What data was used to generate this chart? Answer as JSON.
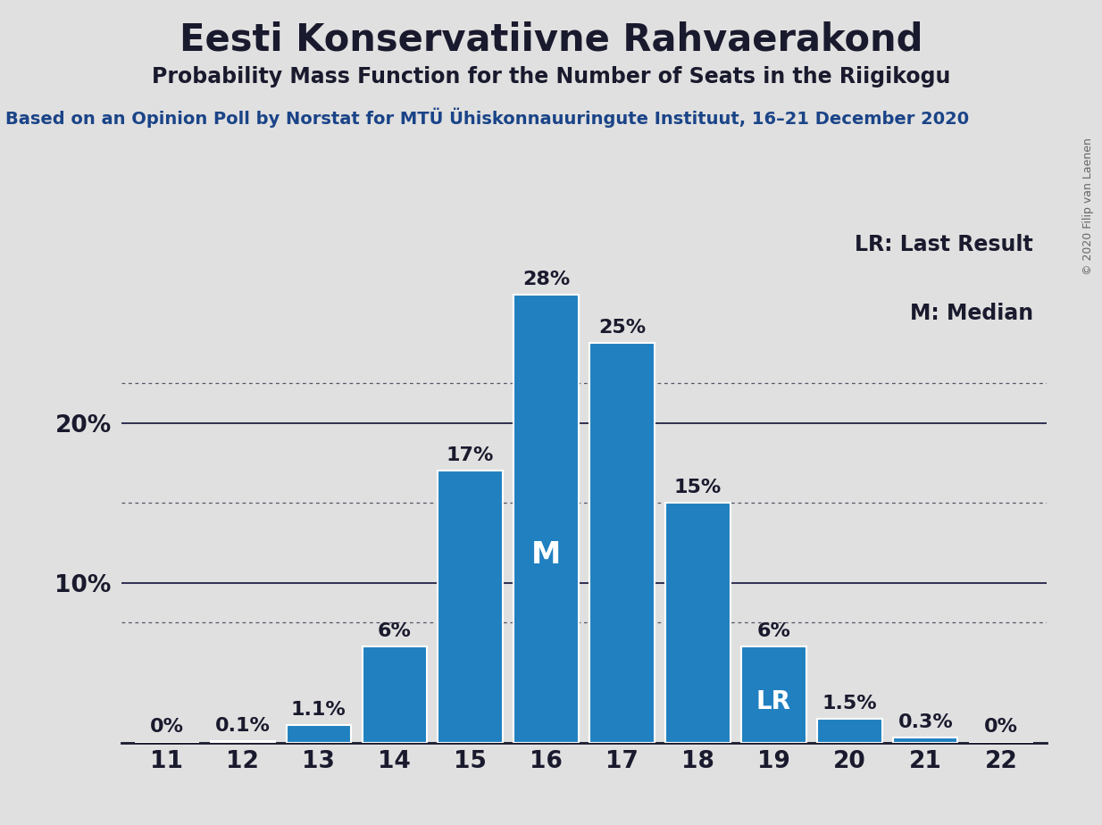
{
  "title": "Eesti Konservatiivne Rahvaerakond",
  "subtitle": "Probability Mass Function for the Number of Seats in the Riigikogu",
  "source_line": "Based on an Opinion Poll by Norstat for MTÜ Ühiskonnauuringute Instituut, 16–21 December 2020",
  "copyright": "© 2020 Filip van Laenen",
  "seats": [
    11,
    12,
    13,
    14,
    15,
    16,
    17,
    18,
    19,
    20,
    21,
    22
  ],
  "values": [
    0.0,
    0.1,
    1.1,
    6.0,
    17.0,
    28.0,
    25.0,
    15.0,
    6.0,
    1.5,
    0.3,
    0.0
  ],
  "labels": [
    "0%",
    "0.1%",
    "1.1%",
    "6%",
    "17%",
    "28%",
    "25%",
    "15%",
    "6%",
    "1.5%",
    "0.3%",
    "0%"
  ],
  "bar_color": "#2080C0",
  "median_seat": 16,
  "lr_seat": 19,
  "background_color": "#E0E0E0",
  "shown_yticks": [
    10,
    20
  ],
  "dotted_yticks": [
    7.5,
    15,
    22.5
  ],
  "title_fontsize": 30,
  "subtitle_fontsize": 17,
  "source_fontsize": 14,
  "bar_label_fontsize": 16,
  "axis_label_fontsize": 19,
  "legend_fontsize": 17,
  "median_label_fontsize": 24,
  "lr_label_fontsize": 20,
  "copyright_fontsize": 9
}
